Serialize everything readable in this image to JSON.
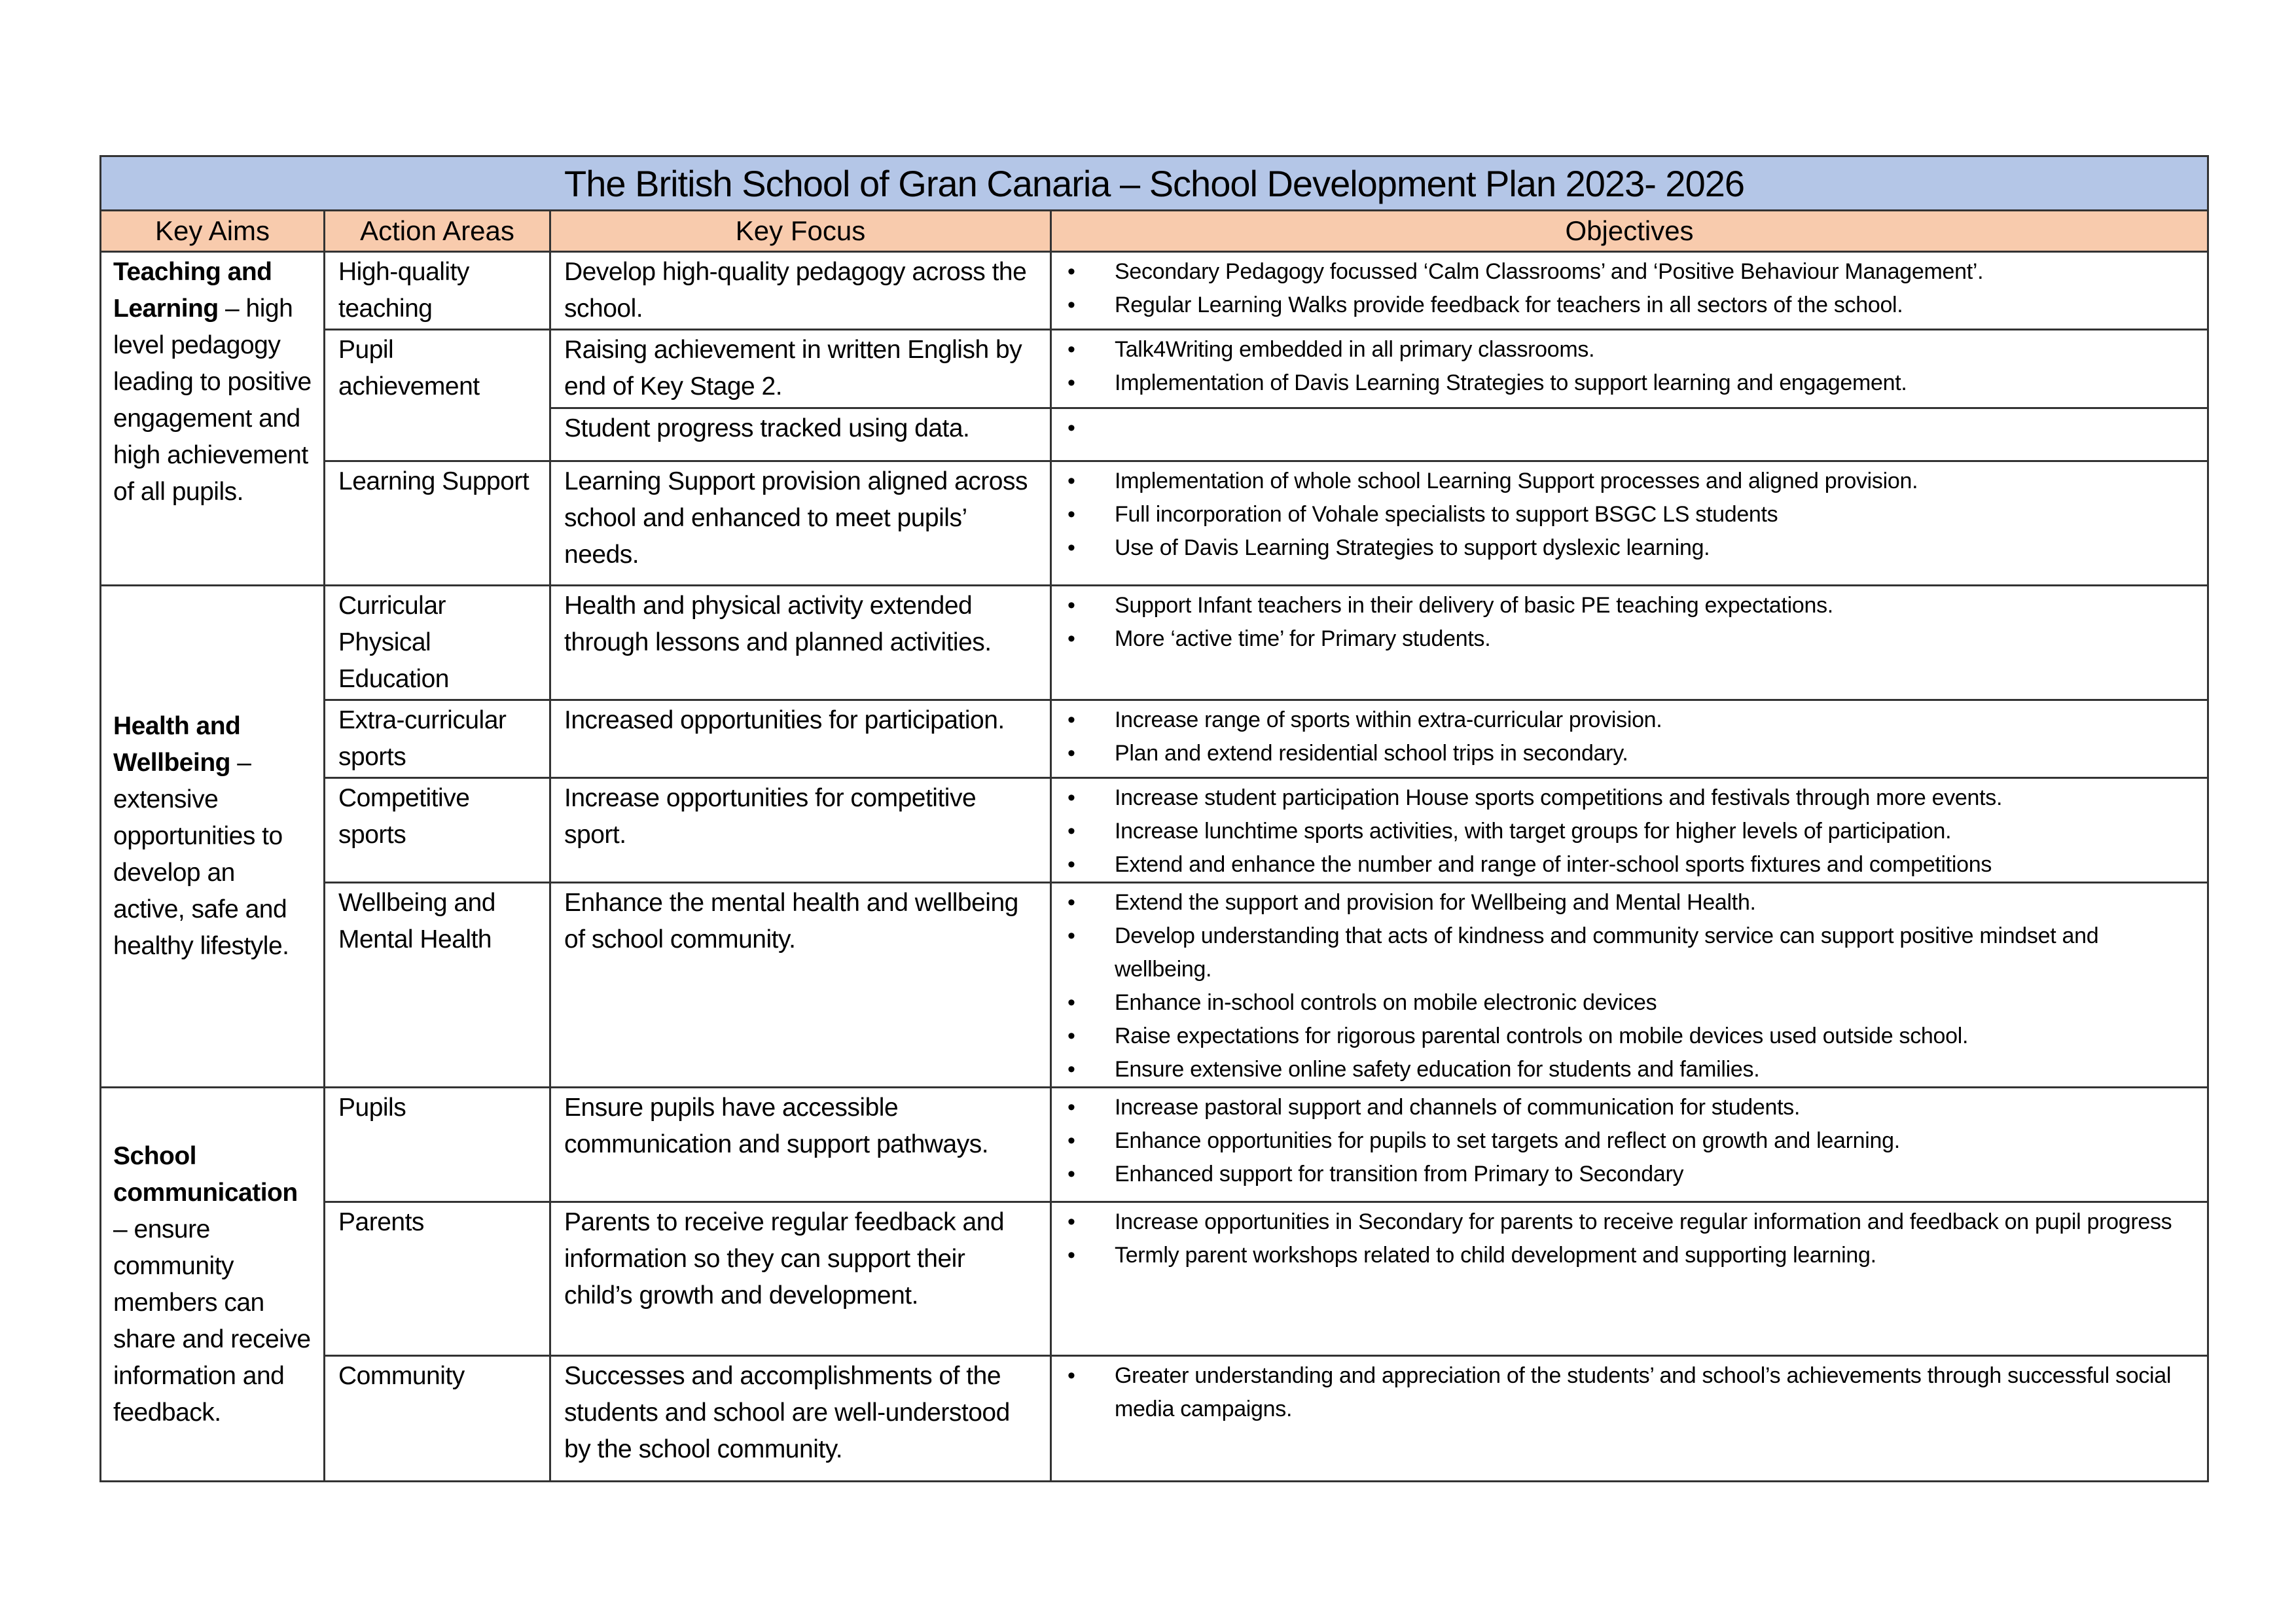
{
  "title": "The British School of Gran Canaria – School Development Plan 2023- 2026",
  "headers": [
    "Key Aims",
    "Action Areas",
    "Key Focus",
    "Objectives"
  ],
  "aims": [
    {
      "bold": "Teaching and Learning",
      "rest": " – high level pedagogy leading to positive engagement and high achievement of all pupils."
    },
    {
      "bold": "Health and Wellbeing",
      "rest": " – extensive opportunities to develop an active, safe and healthy lifestyle."
    },
    {
      "bold": "School communication",
      "rest": " – ensure community members can share and receive information and feedback."
    }
  ],
  "rows": [
    {
      "area": "High-quality teaching",
      "focus": "Develop high-quality pedagogy across the school.",
      "objectives": [
        "Secondary Pedagogy focussed ‘Calm Classrooms’ and ‘Positive Behaviour Management’.",
        "Regular Learning Walks provide feedback for teachers in all sectors of the school."
      ]
    },
    {
      "area": "Pupil achievement",
      "focus": "Raising achievement in written English by end of Key Stage 2.",
      "objectives": [
        "Talk4Writing embedded in all primary classrooms.",
        "Implementation of Davis Learning Strategies to support learning and engagement."
      ]
    },
    {
      "focus": "Student progress tracked using data.",
      "objectives": [
        ""
      ]
    },
    {
      "area": "Learning Support",
      "focus": "Learning Support provision aligned across school and enhanced to meet pupils’ needs.",
      "objectives": [
        "Implementation of whole school Learning Support processes and aligned provision.",
        "Full incorporation of Vohale specialists to support BSGC LS students",
        "Use of Davis Learning Strategies to support dyslexic learning."
      ]
    },
    {
      "area": "Curricular Physical Education",
      "focus": "Health and physical activity extended through lessons and planned activities.",
      "objectives": [
        "Support Infant teachers in their delivery of basic PE teaching expectations.",
        "More ‘active time’ for Primary students."
      ]
    },
    {
      "area": "Extra-curricular sports",
      "focus": "Increased opportunities for participation.",
      "objectives": [
        "Increase range of sports within extra-curricular provision.",
        "Plan and extend residential school trips in secondary."
      ]
    },
    {
      "area": "Competitive sports",
      "focus": "Increase opportunities for competitive sport.",
      "objectives": [
        "Increase student participation House sports competitions and festivals through more events.",
        "Increase lunchtime sports activities, with target groups for higher levels of participation.",
        "Extend and enhance the number and range of inter-school sports fixtures and competitions"
      ]
    },
    {
      "area": "Wellbeing and Mental Health",
      "focus": "Enhance the mental health and wellbeing of school community.",
      "objectives": [
        "Extend the support and provision for Wellbeing and Mental Health.",
        "Develop understanding that acts of kindness and community service can support positive mindset and wellbeing.",
        "Enhance in-school controls on mobile electronic devices",
        "Raise expectations for rigorous parental controls on mobile devices used outside school.",
        "Ensure extensive online safety education for students and families."
      ]
    },
    {
      "area": "Pupils",
      "focus": "Ensure pupils have accessible communication and support pathways.",
      "objectives": [
        "Increase pastoral support and channels of communication for students.",
        "Enhance opportunities for pupils to set targets and reflect on growth and learning.",
        "Enhanced support for transition from Primary to Secondary"
      ]
    },
    {
      "area": "Parents",
      "focus": "Parents to receive regular feedback and information so they can support their child’s growth and development.",
      "objectives": [
        "Increase opportunities in Secondary for parents to receive regular information and feedback on pupil progress",
        "Termly parent workshops related to child development and supporting learning."
      ]
    },
    {
      "area": "Community",
      "focus": "Successes and accomplishments of the students and school are well-understood by the school community.",
      "objectives": [
        "Greater understanding and appreciation of the students’ and school’s achievements through successful social media campaigns."
      ]
    }
  ]
}
